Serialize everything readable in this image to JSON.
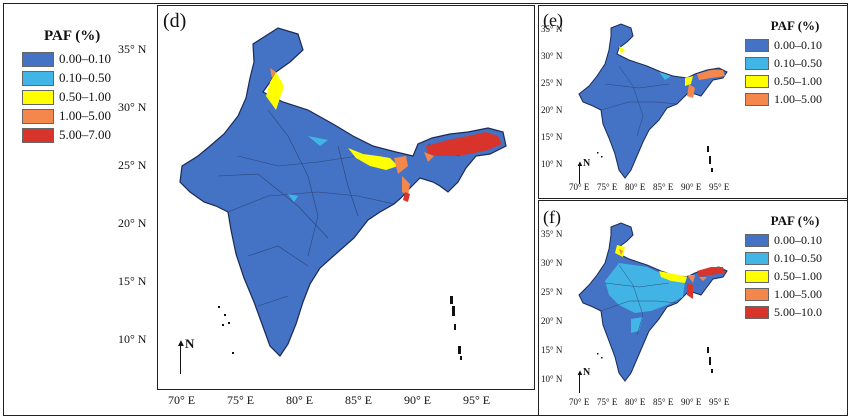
{
  "legend_left": {
    "title": "PAF (%)",
    "items": [
      {
        "label": "0.00–0.10",
        "color": "#4472C4"
      },
      {
        "label": "0.10–0.50",
        "color": "#41B6E6"
      },
      {
        "label": "0.50–1.00",
        "color": "#FFFF00"
      },
      {
        "label": "1.00–5.00",
        "color": "#F4874B"
      },
      {
        "label": "5.00–7.00",
        "color": "#D9342B"
      }
    ]
  },
  "panel_d": {
    "label": "(d)",
    "lat_ticks": [
      "35° N",
      "30° N",
      "25° N",
      "20° N",
      "15° N",
      "10° N"
    ],
    "lon_ticks": [
      "70° E",
      "75° E",
      "80° E",
      "85° E",
      "90° E",
      "95° E"
    ],
    "north": "N"
  },
  "panel_e": {
    "label": "(e)",
    "lat_ticks": [
      "35° N",
      "30° N",
      "25° N",
      "20° N",
      "15° N",
      "10° N"
    ],
    "lon_ticks": [
      "70° E",
      "75° E",
      "80° E",
      "85° E",
      "90° E",
      "95° E"
    ],
    "north": "N",
    "legend_title": "PAF (%)",
    "legend": [
      {
        "label": "0.00–0.10",
        "color": "#4472C4"
      },
      {
        "label": "0.10–0.50",
        "color": "#41B6E6"
      },
      {
        "label": "0.50–1.00",
        "color": "#FFFF00"
      },
      {
        "label": "1.00–5.00",
        "color": "#F4874B"
      }
    ]
  },
  "panel_f": {
    "label": "(f)",
    "lat_ticks": [
      "35° N",
      "30° N",
      "25° N",
      "20° N",
      "15° N",
      "10° N"
    ],
    "lon_ticks": [
      "70° E",
      "75° E",
      "80° E",
      "85° E",
      "90° E",
      "95° E"
    ],
    "north": "N",
    "legend_title": "PAF (%)",
    "legend": [
      {
        "label": "0.00–0.10",
        "color": "#4472C4"
      },
      {
        "label": "0.10–0.50",
        "color": "#41B6E6"
      },
      {
        "label": "0.50–1.00",
        "color": "#FFFF00"
      },
      {
        "label": "1.00–5.00",
        "color": "#F4874B"
      },
      {
        "label": "5.00–10.0",
        "color": "#D9342B"
      }
    ]
  }
}
